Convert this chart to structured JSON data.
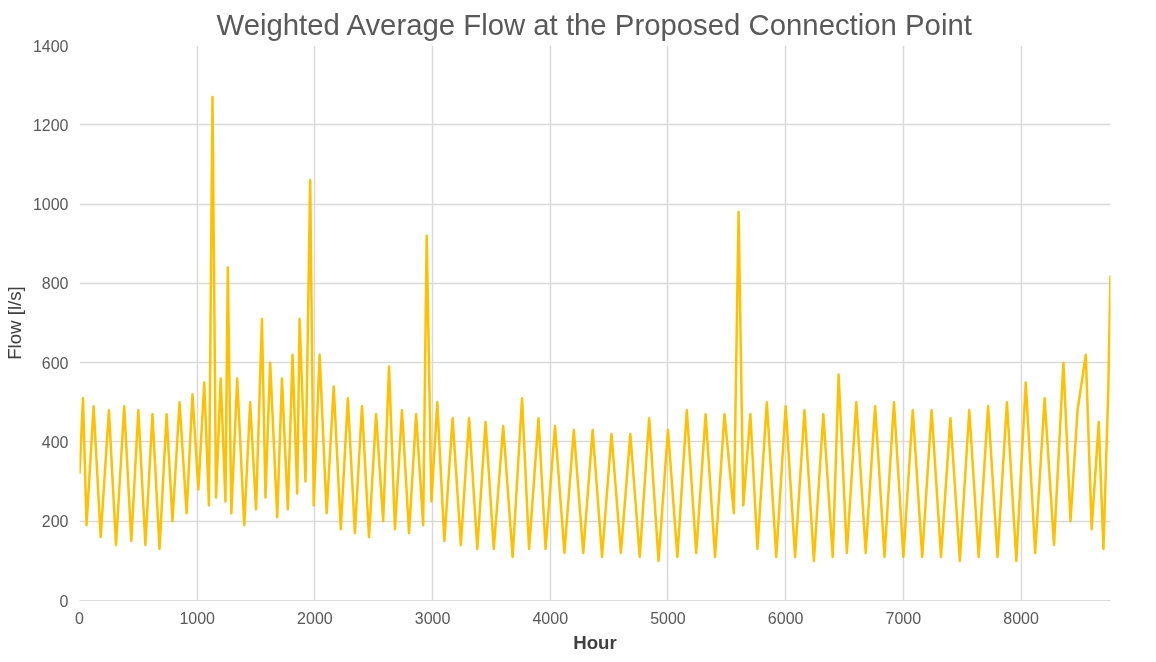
{
  "chart_data": {
    "type": "line",
    "title": "Weighted Average Flow at the Proposed Connection Point",
    "xlabel": "Hour",
    "ylabel": "Flow [l/s]",
    "xlim": [
      0,
      8760
    ],
    "xticks": [
      0,
      1000,
      2000,
      3000,
      4000,
      5000,
      6000,
      7000,
      8000
    ],
    "ylim": [
      0,
      1400
    ],
    "yticks": [
      0,
      200,
      400,
      600,
      800,
      1000,
      1200,
      1400
    ],
    "grid": true,
    "series": [
      {
        "color": "#ffc000",
        "x": [
          0,
          30,
          60,
          120,
          180,
          250,
          310,
          380,
          440,
          500,
          560,
          620,
          680,
          740,
          790,
          850,
          910,
          960,
          1010,
          1060,
          1100,
          1130,
          1160,
          1200,
          1240,
          1260,
          1290,
          1340,
          1400,
          1450,
          1500,
          1550,
          1580,
          1620,
          1680,
          1720,
          1770,
          1810,
          1850,
          1870,
          1920,
          1960,
          1990,
          2040,
          2100,
          2160,
          2220,
          2280,
          2340,
          2400,
          2460,
          2520,
          2580,
          2630,
          2680,
          2740,
          2800,
          2860,
          2920,
          2950,
          2990,
          3040,
          3100,
          3170,
          3240,
          3310,
          3380,
          3450,
          3520,
          3600,
          3680,
          3760,
          3820,
          3900,
          3960,
          4040,
          4120,
          4200,
          4280,
          4360,
          4440,
          4520,
          4600,
          4680,
          4760,
          4840,
          4920,
          5000,
          5080,
          5160,
          5240,
          5320,
          5400,
          5480,
          5560,
          5600,
          5640,
          5700,
          5760,
          5840,
          5920,
          6000,
          6080,
          6160,
          6240,
          6320,
          6400,
          6450,
          6520,
          6600,
          6680,
          6760,
          6840,
          6920,
          7000,
          7080,
          7160,
          7240,
          7320,
          7400,
          7480,
          7560,
          7640,
          7720,
          7800,
          7880,
          7960,
          8040,
          8120,
          8200,
          8280,
          8360,
          8420,
          8480,
          8550,
          8600,
          8660,
          8700,
          8740,
          8760
        ],
        "values": [
          320,
          510,
          190,
          490,
          160,
          480,
          140,
          490,
          150,
          480,
          140,
          470,
          130,
          470,
          200,
          500,
          220,
          520,
          280,
          550,
          240,
          1270,
          260,
          560,
          250,
          840,
          220,
          560,
          190,
          500,
          230,
          710,
          260,
          600,
          210,
          560,
          230,
          620,
          270,
          710,
          300,
          1060,
          240,
          620,
          220,
          540,
          180,
          510,
          170,
          490,
          160,
          470,
          200,
          590,
          180,
          480,
          170,
          470,
          190,
          920,
          250,
          500,
          150,
          460,
          140,
          460,
          130,
          450,
          130,
          440,
          110,
          510,
          130,
          460,
          130,
          440,
          120,
          430,
          120,
          430,
          110,
          420,
          120,
          420,
          110,
          460,
          100,
          430,
          110,
          480,
          120,
          470,
          110,
          470,
          220,
          980,
          240,
          470,
          130,
          500,
          110,
          490,
          110,
          480,
          100,
          470,
          110,
          570,
          120,
          500,
          120,
          490,
          110,
          500,
          110,
          480,
          110,
          480,
          110,
          460,
          100,
          480,
          110,
          490,
          110,
          500,
          100,
          550,
          120,
          510,
          140,
          600,
          200,
          480,
          620,
          180,
          450,
          130,
          520,
          820
        ]
      }
    ]
  }
}
